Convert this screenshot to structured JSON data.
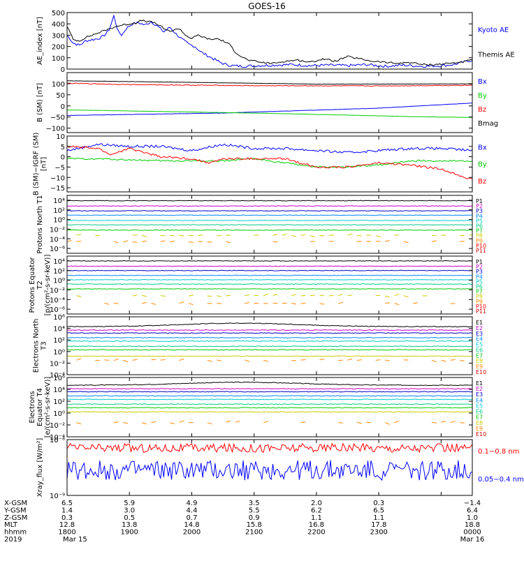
{
  "title": "GOES-16",
  "colors": {
    "black": "#000000",
    "blue": "#0000ff",
    "red": "#ff0000",
    "green": "#00cc00",
    "p_series": [
      "#000000",
      "#cc00cc",
      "#0000cc",
      "#0088ff",
      "#00cccc",
      "#00cc88",
      "#00cc00",
      "#cccc00",
      "#ff8800",
      "#ff0000",
      "#cc0000"
    ],
    "e_series": [
      "#000000",
      "#cc00cc",
      "#0000cc",
      "#0088ff",
      "#00cccc",
      "#00cc88",
      "#00cc00",
      "#cccc00",
      "#ff8800",
      "#cc0000"
    ]
  },
  "chart_data": [
    {
      "type": "line",
      "ylabel": "AE_index [nT]",
      "yscale": "linear",
      "ylim": [
        0,
        500
      ],
      "yticks": [
        "500",
        "400",
        "300",
        "200",
        "100",
        "0"
      ],
      "yticks_values": [
        500,
        400,
        300,
        200,
        100,
        0
      ],
      "legend_position": "right",
      "series": [
        {
          "name": "Kyoto AE",
          "color": "blue",
          "x": [
            17.5,
            17.6,
            17.7,
            17.8,
            17.9,
            18.0,
            18.08,
            18.17,
            18.25,
            18.32,
            18.38,
            18.45,
            18.55,
            18.65,
            18.75,
            18.85,
            18.95,
            19.05,
            19.15,
            19.25,
            19.35,
            19.45,
            19.55,
            19.65,
            19.75,
            19.85,
            19.95,
            20.05,
            20.15,
            20.3,
            20.5,
            20.8,
            21.1,
            21.4,
            21.7,
            22.0,
            22.3,
            22.6,
            22.9,
            23.2,
            23.5,
            23.7,
            23.85,
            24.0
          ],
          "y": [
            300,
            230,
            210,
            250,
            260,
            270,
            290,
            340,
            470,
            330,
            300,
            360,
            400,
            410,
            390,
            420,
            380,
            330,
            370,
            310,
            260,
            220,
            200,
            150,
            120,
            90,
            60,
            40,
            30,
            25,
            30,
            35,
            40,
            30,
            35,
            30,
            40,
            25,
            35,
            25,
            30,
            40,
            60,
            80
          ],
          "noise": 12
        },
        {
          "name": "Themis AE",
          "color": "black",
          "x": [
            17.5,
            17.6,
            17.7,
            17.8,
            17.9,
            18.0,
            18.1,
            18.2,
            18.3,
            18.4,
            18.5,
            18.6,
            18.7,
            18.8,
            18.9,
            19.0,
            19.1,
            19.2,
            19.3,
            19.4,
            19.5,
            19.6,
            19.7,
            19.8,
            19.9,
            20.0,
            20.1,
            20.2,
            20.3,
            20.4,
            20.5,
            20.6,
            20.8,
            21.0,
            21.2,
            21.4,
            21.6,
            21.8,
            22.0,
            22.2,
            22.4,
            22.6,
            22.8,
            23.0,
            23.2,
            23.4,
            23.6,
            23.8,
            24.0
          ],
          "y": [
            380,
            260,
            250,
            280,
            300,
            320,
            340,
            360,
            380,
            390,
            400,
            410,
            430,
            420,
            410,
            380,
            340,
            340,
            360,
            300,
            270,
            300,
            280,
            260,
            270,
            250,
            220,
            150,
            110,
            80,
            70,
            60,
            50,
            70,
            80,
            60,
            90,
            70,
            110,
            90,
            70,
            60,
            50,
            60,
            40,
            40,
            50,
            60,
            80
          ],
          "noise": 8
        }
      ]
    },
    {
      "type": "line",
      "ylabel": "B (SM) [nT]",
      "yscale": "linear",
      "ylim": [
        -120,
        150
      ],
      "yticks": [
        "100",
        "50",
        "0",
        "−50",
        "−100"
      ],
      "yticks_values": [
        100,
        50,
        0,
        -50,
        -100
      ],
      "legend_position": "right",
      "series": [
        {
          "name": "Bx",
          "color": "blue",
          "x": [
            17.5,
            20.0,
            22.5,
            24.0
          ],
          "y": [
            -43,
            -32,
            -10,
            13
          ],
          "noise": 0.5
        },
        {
          "name": "By",
          "color": "green",
          "x": [
            17.5,
            19.0,
            21.0,
            23.0,
            24.0
          ],
          "y": [
            -18,
            -25,
            -35,
            -48,
            -52
          ],
          "noise": 0.5
        },
        {
          "name": "Bz",
          "color": "red",
          "x": [
            17.5,
            18.5,
            20.5,
            22.5,
            24.0
          ],
          "y": [
            102,
            96,
            91,
            90,
            93
          ],
          "noise": 1.5
        },
        {
          "name": "Bmag",
          "color": "black",
          "x": [
            17.5,
            19.5,
            21.5,
            24.0
          ],
          "y": [
            113,
            106,
            98,
            99
          ],
          "noise": 0.5
        }
      ]
    },
    {
      "type": "line",
      "ylabel": "B (SM)−IGRF (SM) [nT]",
      "yscale": "linear",
      "ylim": [
        -17,
        10
      ],
      "yticks": [
        "10",
        "5",
        "0",
        "−5",
        "−10",
        "−15"
      ],
      "yticks_values": [
        10,
        5,
        0,
        -5,
        -10,
        -15
      ],
      "legend_position": "right",
      "series": [
        {
          "name": "Bx",
          "color": "blue",
          "x": [
            17.5,
            18.0,
            18.5,
            19.0,
            19.5,
            20.0,
            20.5,
            21.0,
            21.5,
            22.0,
            22.5,
            23.0,
            23.5,
            24.0
          ],
          "y": [
            3,
            6,
            5,
            5,
            3,
            6,
            4,
            4,
            3,
            2,
            3,
            4,
            4,
            3
          ],
          "noise": 0.6
        },
        {
          "name": "By",
          "color": "green",
          "x": [
            17.5,
            18.0,
            19.0,
            20.0,
            20.5,
            21.0,
            21.5,
            22.0,
            22.5,
            23.0,
            23.5,
            24.0
          ],
          "y": [
            -1,
            -1,
            -2,
            -2,
            -1,
            -3,
            -5,
            -5,
            -4,
            -2,
            -2,
            -2
          ],
          "noise": 0.4
        },
        {
          "name": "Bz",
          "color": "red",
          "x": [
            17.5,
            18.0,
            18.2,
            18.5,
            19.0,
            19.5,
            19.8,
            20.0,
            20.5,
            21.0,
            21.5,
            22.0,
            22.5,
            23.0,
            23.5,
            24.0
          ],
          "y": [
            5,
            4,
            1,
            4,
            0,
            -1,
            -3,
            -1,
            -1,
            -1,
            -5,
            -5,
            -3,
            -4,
            -6,
            -11
          ],
          "noise": 0.5
        }
      ]
    },
    {
      "type": "line",
      "ylabel": "Protons North T1",
      "yscale": "log",
      "ylim_exp": [
        -7,
        5
      ],
      "yticks": [
        "10⁴",
        "10²",
        "10⁰",
        "10⁻²",
        "10⁻⁴",
        "10⁻⁶"
      ],
      "yticks_values": [
        4,
        2,
        0,
        -2,
        -4,
        -6
      ],
      "legend_position": "right",
      "series": [
        {
          "name": "P1",
          "level": 3.9
        },
        {
          "name": "P2",
          "level": 2.8
        },
        {
          "name": "P3",
          "level": 1.8
        },
        {
          "name": "P4",
          "level": 0.9
        },
        {
          "name": "P5",
          "level": -0.2
        },
        {
          "name": "P6",
          "level": -1.1
        },
        {
          "name": "P7",
          "level": -2.2
        },
        {
          "name": "P8",
          "level": -3.3,
          "gaps": true
        },
        {
          "name": "P9",
          "level": -4.6,
          "gaps": true
        },
        {
          "name": "P10"
        },
        {
          "name": "P11"
        }
      ]
    },
    {
      "type": "line",
      "ylabel": "Protons Equator T2 [p/(cm²-s-sr-keV)]",
      "yscale": "log",
      "ylim_exp": [
        -7,
        5
      ],
      "yticks": [
        "10⁴",
        "10²",
        "10⁰",
        "10⁻²",
        "10⁻⁴",
        "10⁻⁶"
      ],
      "yticks_values": [
        4,
        2,
        0,
        -2,
        -4,
        -6
      ],
      "legend_position": "right",
      "series": [
        {
          "name": "P1",
          "level": 4.0
        },
        {
          "name": "P2",
          "level": 2.9
        },
        {
          "name": "P3",
          "level": 2.0
        },
        {
          "name": "P4",
          "level": 1.0
        },
        {
          "name": "P5",
          "level": 0.1
        },
        {
          "name": "P6",
          "level": -0.8
        },
        {
          "name": "P7",
          "level": -1.8
        },
        {
          "name": "P8",
          "level": -3.2,
          "gaps": true
        },
        {
          "name": "P9",
          "level": -4.8,
          "gaps": true
        },
        {
          "name": "P10"
        },
        {
          "name": "P11"
        }
      ]
    },
    {
      "type": "line",
      "ylabel": "Electrons North T3",
      "yscale": "log",
      "ylim_exp": [
        -4,
        6
      ],
      "yticks": [
        "10⁶",
        "10⁴",
        "10²",
        "10⁰",
        "10⁻²",
        "10⁻⁴"
      ],
      "yticks_values": [
        6,
        4,
        2,
        0,
        -2,
        -4
      ],
      "legend_position": "right",
      "series": [
        {
          "name": "E1",
          "level": 4.3,
          "bump": 0.6
        },
        {
          "name": "E2",
          "level": 3.7
        },
        {
          "name": "E3",
          "level": 3.2
        },
        {
          "name": "E4",
          "level": 2.4
        },
        {
          "name": "E5",
          "level": 1.8
        },
        {
          "name": "E6",
          "level": 0.9
        },
        {
          "name": "E7",
          "level": 0.3
        },
        {
          "name": "E8",
          "level": -0.8
        },
        {
          "name": "E9",
          "level": -1.5,
          "gaps": true
        },
        {
          "name": "E10"
        }
      ]
    },
    {
      "type": "line",
      "ylabel": "Electrons Equator T4 [e/(cm²-s-sr-keV)]",
      "yscale": "log",
      "ylim_exp": [
        -4,
        6
      ],
      "yticks": [
        "10⁶",
        "10⁴",
        "10²",
        "10⁰",
        "10⁻²",
        "10⁻⁴"
      ],
      "yticks_values": [
        6,
        4,
        2,
        0,
        -2,
        -4
      ],
      "legend_position": "right",
      "series": [
        {
          "name": "E1",
          "level": 4.7,
          "bump": 0.5
        },
        {
          "name": "E2",
          "level": 4.1
        },
        {
          "name": "E3",
          "level": 3.6
        },
        {
          "name": "E4",
          "level": 2.9
        },
        {
          "name": "E5",
          "level": 2.3
        },
        {
          "name": "E6",
          "level": 1.5
        },
        {
          "name": "E7",
          "level": 0.9
        },
        {
          "name": "E8",
          "level": 0.2
        },
        {
          "name": "E9",
          "level": -1.6,
          "gaps": true
        },
        {
          "name": "E10"
        }
      ]
    },
    {
      "type": "line",
      "ylabel": "Xray_flux [W/m²]",
      "yscale": "log",
      "ylim_exp": [
        -9,
        -8
      ],
      "yticks": [
        "10⁻⁸",
        "10⁻⁹"
      ],
      "yticks_values": [
        -8,
        -9
      ],
      "legend_position": "right",
      "series": [
        {
          "name": "0.1−0.8 nm",
          "color": "red",
          "level": -8.15,
          "noise": 0.08
        },
        {
          "name": "0.05−0.4 nm",
          "color": "blue",
          "level": -8.55,
          "noise": 0.18
        }
      ]
    }
  ],
  "x_axis": {
    "xlim": [
      17.5,
      24.0
    ],
    "ticks": [
      17.5,
      18.5,
      19.5,
      20.5,
      21.5,
      22.5,
      23.5,
      24.0
    ],
    "row_labels": [
      "X-GSM",
      "Y-GSM",
      "Z-GSM",
      "MLT",
      "hhmm",
      "2019"
    ],
    "rows": [
      [
        "6.5",
        "5.9",
        "4.9",
        "3.5",
        "2.0",
        "0.3",
        "−1.4"
      ],
      [
        "1.4",
        "3.0",
        "4.4",
        "5.5",
        "6.2",
        "6.5",
        "6.4"
      ],
      [
        "0.3",
        "0.5",
        "0.7",
        "0.9",
        "1.1",
        "1.1",
        "1.0"
      ],
      [
        "12.8",
        "13.8",
        "14.8",
        "15.8",
        "16.8",
        "17.8",
        "18.8"
      ],
      [
        "1800",
        "1900",
        "2000",
        "2100",
        "2200",
        "2300",
        "0000"
      ],
      [
        "Mar 15",
        "",
        "",
        "",
        "",
        "",
        "Mar 16"
      ]
    ]
  }
}
